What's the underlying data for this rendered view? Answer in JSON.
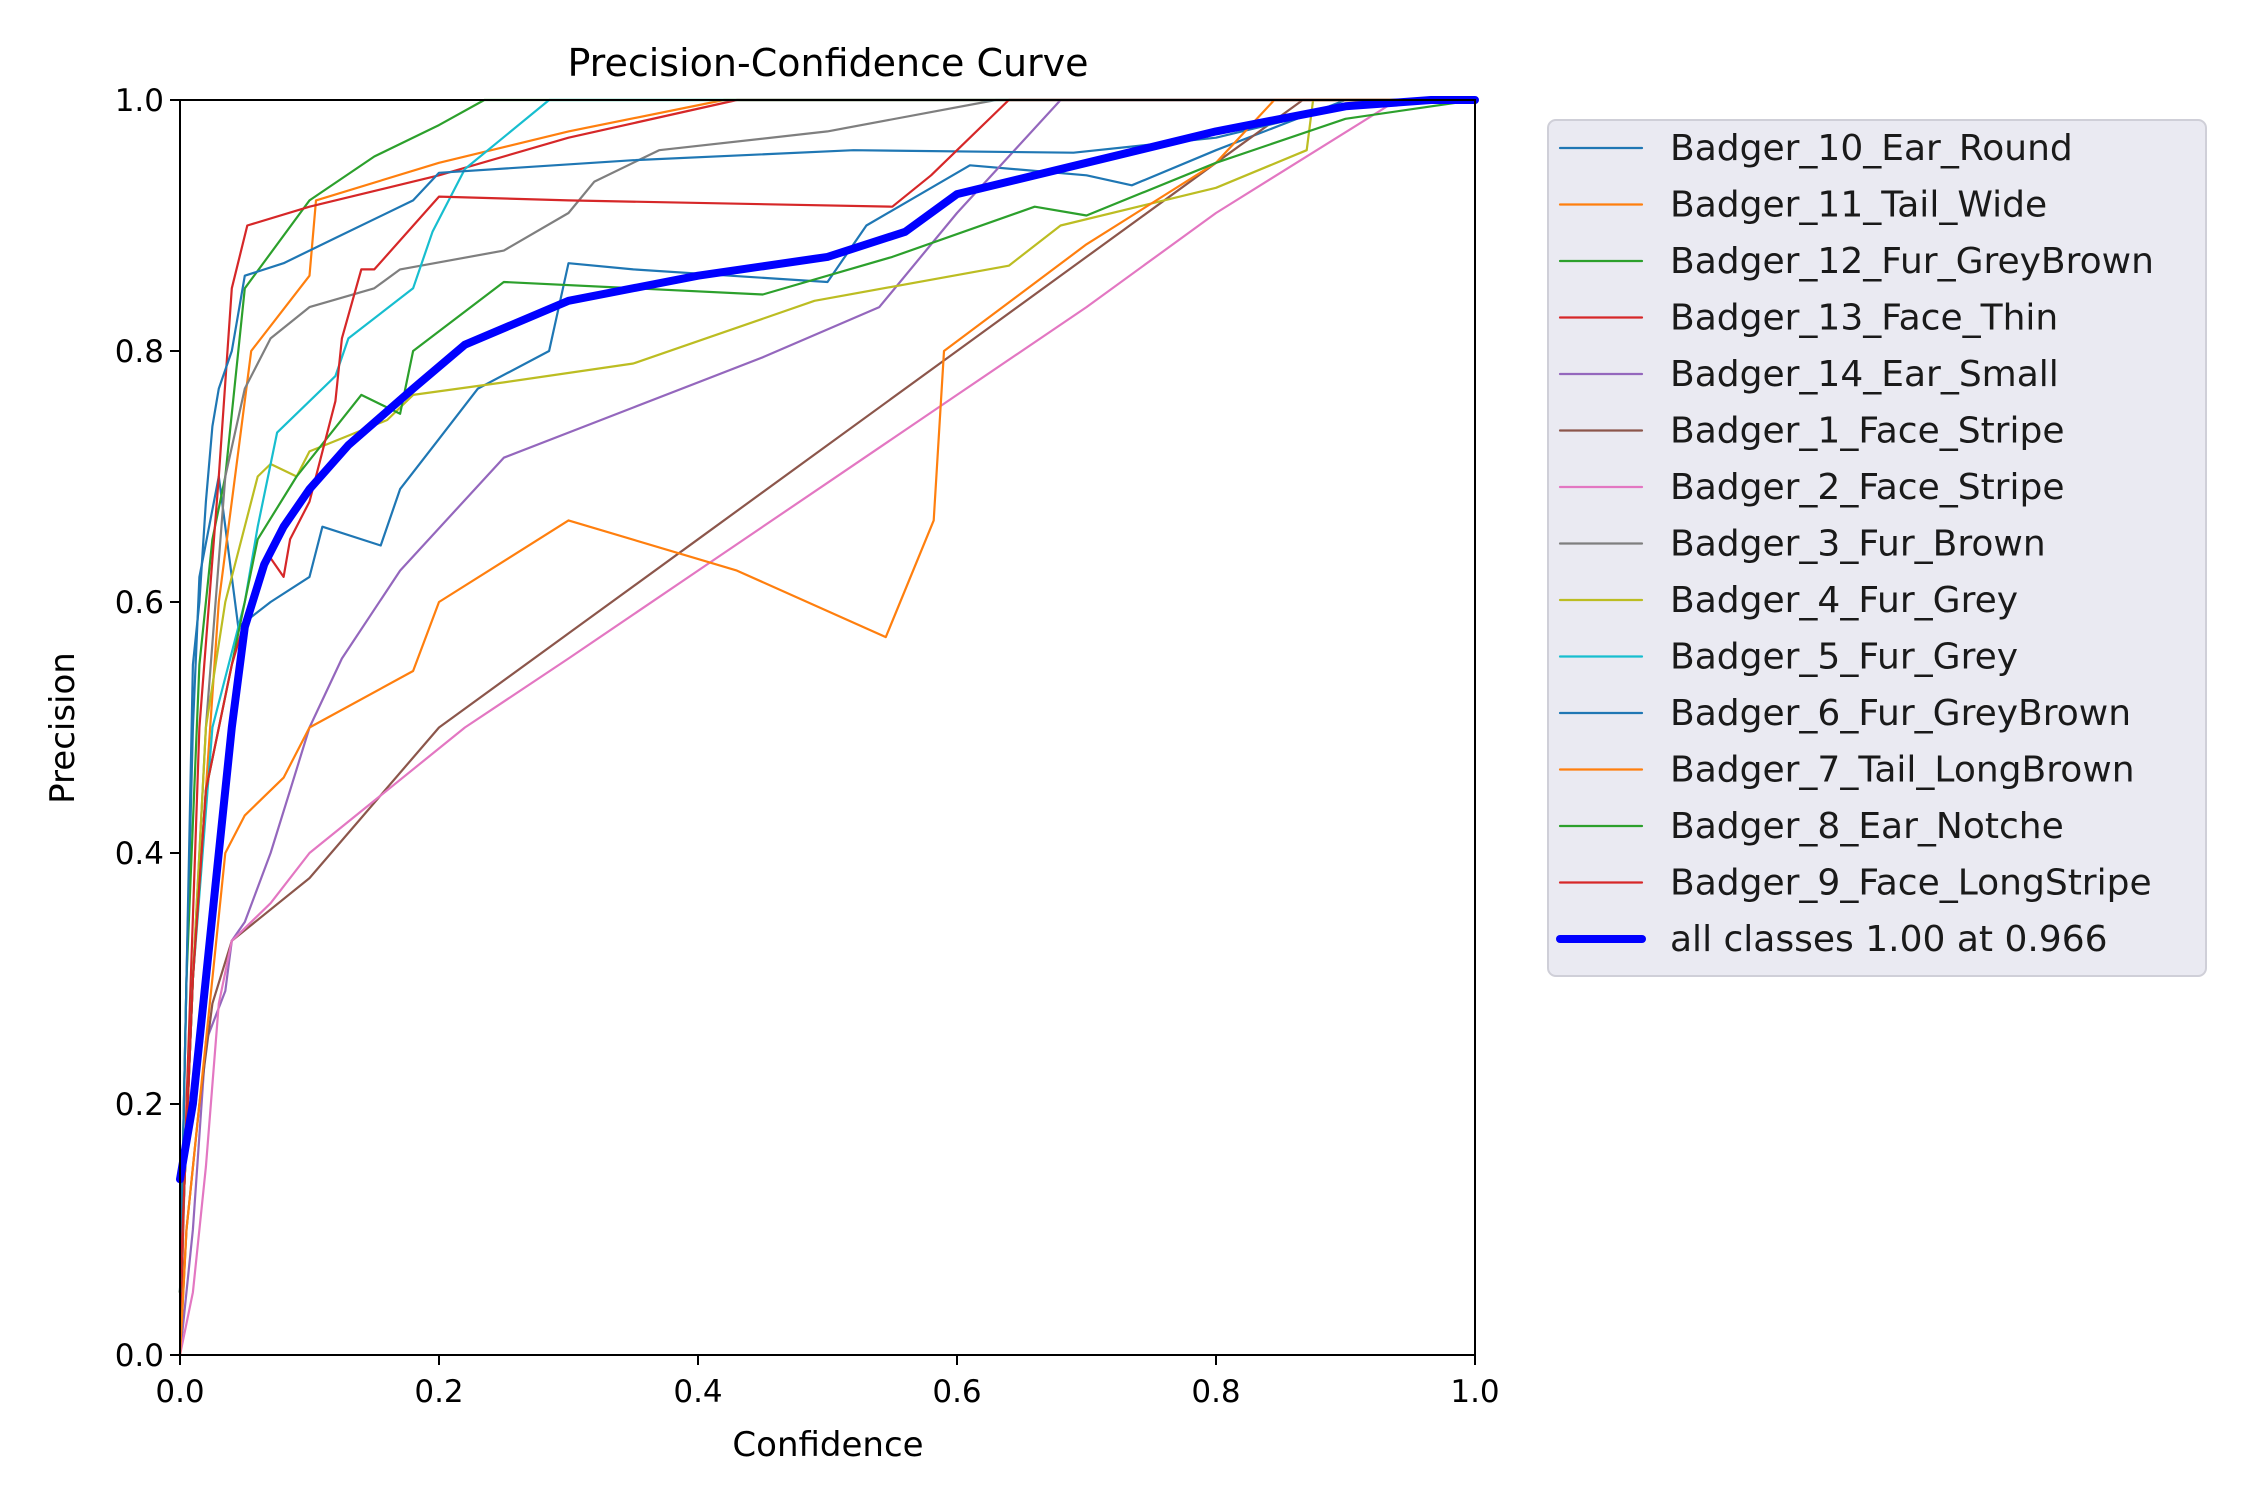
{
  "chart_data": {
    "type": "line",
    "title": "Precision-Confidence Curve",
    "xlabel": "Confidence",
    "ylabel": "Precision",
    "xlim": [
      0,
      1
    ],
    "ylim": [
      0,
      1
    ],
    "xticks": [
      "0.0",
      "0.2",
      "0.4",
      "0.6",
      "0.8",
      "1.0"
    ],
    "yticks": [
      "0.0",
      "0.2",
      "0.4",
      "0.6",
      "0.8",
      "1.0"
    ],
    "grid": false,
    "legend_position": "outside-right",
    "series": [
      {
        "name": "Badger_10_Ear_Round",
        "color": "#1f77b4",
        "points": [
          [
            0,
            0.05
          ],
          [
            0.005,
            0.3
          ],
          [
            0.01,
            0.5
          ],
          [
            0.015,
            0.62
          ],
          [
            0.03,
            0.7
          ],
          [
            0.045,
            0.58
          ],
          [
            0.07,
            0.6
          ],
          [
            0.1,
            0.62
          ],
          [
            0.11,
            0.66
          ],
          [
            0.155,
            0.645
          ],
          [
            0.17,
            0.69
          ],
          [
            0.2,
            0.73
          ],
          [
            0.23,
            0.77
          ],
          [
            0.285,
            0.8
          ],
          [
            0.3,
            0.87
          ],
          [
            0.35,
            0.865
          ],
          [
            0.5,
            0.855
          ],
          [
            0.53,
            0.9
          ],
          [
            0.61,
            0.948
          ],
          [
            0.7,
            0.94
          ],
          [
            0.735,
            0.932
          ],
          [
            0.8,
            0.96
          ],
          [
            0.9,
            1.0
          ],
          [
            1.0,
            1.0
          ]
        ]
      },
      {
        "name": "Badger_11_Tail_Wide",
        "color": "#ff7f0e",
        "points": [
          [
            0,
            0.05
          ],
          [
            0.01,
            0.3
          ],
          [
            0.03,
            0.6
          ],
          [
            0.045,
            0.72
          ],
          [
            0.055,
            0.8
          ],
          [
            0.1,
            0.86
          ],
          [
            0.105,
            0.92
          ],
          [
            0.2,
            0.95
          ],
          [
            0.3,
            0.975
          ],
          [
            0.42,
            1.0
          ],
          [
            1.0,
            1.0
          ]
        ]
      },
      {
        "name": "Badger_12_Fur_GreyBrown",
        "color": "#2ca02c",
        "points": [
          [
            0,
            0.05
          ],
          [
            0.005,
            0.3
          ],
          [
            0.015,
            0.55
          ],
          [
            0.025,
            0.65
          ],
          [
            0.035,
            0.7
          ],
          [
            0.045,
            0.8
          ],
          [
            0.05,
            0.85
          ],
          [
            0.1,
            0.92
          ],
          [
            0.15,
            0.955
          ],
          [
            0.2,
            0.98
          ],
          [
            0.235,
            1.0
          ],
          [
            1.0,
            1.0
          ]
        ]
      },
      {
        "name": "Badger_13_Face_Thin",
        "color": "#d62728",
        "points": [
          [
            0,
            0.0
          ],
          [
            0.005,
            0.2
          ],
          [
            0.015,
            0.5
          ],
          [
            0.03,
            0.7
          ],
          [
            0.04,
            0.85
          ],
          [
            0.052,
            0.9
          ],
          [
            0.1,
            0.915
          ],
          [
            0.2,
            0.94
          ],
          [
            0.3,
            0.97
          ],
          [
            0.43,
            1.0
          ],
          [
            1.0,
            1.0
          ]
        ]
      },
      {
        "name": "Badger_14_Ear_Small",
        "color": "#9467bd",
        "points": [
          [
            0,
            0.0
          ],
          [
            0.01,
            0.1
          ],
          [
            0.02,
            0.25
          ],
          [
            0.035,
            0.29
          ],
          [
            0.04,
            0.33
          ],
          [
            0.05,
            0.345
          ],
          [
            0.07,
            0.4
          ],
          [
            0.085,
            0.45
          ],
          [
            0.1,
            0.5
          ],
          [
            0.125,
            0.555
          ],
          [
            0.17,
            0.625
          ],
          [
            0.25,
            0.715
          ],
          [
            0.35,
            0.755
          ],
          [
            0.45,
            0.795
          ],
          [
            0.54,
            0.835
          ],
          [
            0.6,
            0.91
          ],
          [
            0.68,
            1.0
          ],
          [
            1.0,
            1.0
          ]
        ]
      },
      {
        "name": "Badger_1_Face_Stripe",
        "color": "#8c564b",
        "points": [
          [
            0,
            0.0
          ],
          [
            0.005,
            0.1
          ],
          [
            0.015,
            0.2
          ],
          [
            0.025,
            0.28
          ],
          [
            0.04,
            0.33
          ],
          [
            0.1,
            0.38
          ],
          [
            0.2,
            0.5
          ],
          [
            0.3,
            0.575
          ],
          [
            0.4,
            0.65
          ],
          [
            0.5,
            0.725
          ],
          [
            0.6,
            0.8
          ],
          [
            0.7,
            0.875
          ],
          [
            0.8,
            0.95
          ],
          [
            0.867,
            1.0
          ],
          [
            1.0,
            1.0
          ]
        ]
      },
      {
        "name": "Badger_2_Face_Stripe",
        "color": "#e377c2",
        "points": [
          [
            0,
            0.0
          ],
          [
            0.01,
            0.05
          ],
          [
            0.02,
            0.15
          ],
          [
            0.03,
            0.28
          ],
          [
            0.04,
            0.33
          ],
          [
            0.07,
            0.36
          ],
          [
            0.1,
            0.4
          ],
          [
            0.22,
            0.5
          ],
          [
            0.3,
            0.555
          ],
          [
            0.4,
            0.625
          ],
          [
            0.5,
            0.695
          ],
          [
            0.6,
            0.765
          ],
          [
            0.7,
            0.835
          ],
          [
            0.8,
            0.91
          ],
          [
            0.94,
            1.0
          ],
          [
            1.0,
            1.0
          ]
        ]
      },
      {
        "name": "Badger_3_Fur_Brown",
        "color": "#7f7f7f",
        "points": [
          [
            0,
            0.05
          ],
          [
            0.01,
            0.3
          ],
          [
            0.02,
            0.5
          ],
          [
            0.035,
            0.7
          ],
          [
            0.05,
            0.77
          ],
          [
            0.06,
            0.79
          ],
          [
            0.07,
            0.81
          ],
          [
            0.1,
            0.835
          ],
          [
            0.15,
            0.85
          ],
          [
            0.17,
            0.865
          ],
          [
            0.25,
            0.88
          ],
          [
            0.3,
            0.91
          ],
          [
            0.32,
            0.935
          ],
          [
            0.37,
            0.96
          ],
          [
            0.5,
            0.975
          ],
          [
            0.63,
            1.0
          ],
          [
            1.0,
            1.0
          ]
        ]
      },
      {
        "name": "Badger_4_Fur_Grey",
        "color": "#bcbd22",
        "points": [
          [
            0,
            0.05
          ],
          [
            0.01,
            0.3
          ],
          [
            0.02,
            0.5
          ],
          [
            0.035,
            0.6
          ],
          [
            0.06,
            0.7
          ],
          [
            0.07,
            0.71
          ],
          [
            0.09,
            0.7
          ],
          [
            0.1,
            0.72
          ],
          [
            0.16,
            0.745
          ],
          [
            0.18,
            0.765
          ],
          [
            0.25,
            0.775
          ],
          [
            0.35,
            0.79
          ],
          [
            0.42,
            0.815
          ],
          [
            0.49,
            0.84
          ],
          [
            0.64,
            0.868
          ],
          [
            0.68,
            0.9
          ],
          [
            0.8,
            0.93
          ],
          [
            0.87,
            0.96
          ],
          [
            0.875,
            1.0
          ],
          [
            1.0,
            1.0
          ]
        ]
      },
      {
        "name": "Badger_5_Fur_Grey",
        "color": "#17becf",
        "points": [
          [
            0,
            0.05
          ],
          [
            0.01,
            0.3
          ],
          [
            0.025,
            0.5
          ],
          [
            0.05,
            0.6
          ],
          [
            0.06,
            0.66
          ],
          [
            0.075,
            0.735
          ],
          [
            0.12,
            0.78
          ],
          [
            0.13,
            0.81
          ],
          [
            0.18,
            0.85
          ],
          [
            0.195,
            0.895
          ],
          [
            0.22,
            0.945
          ],
          [
            0.285,
            1.0
          ],
          [
            1.0,
            1.0
          ]
        ]
      },
      {
        "name": "Badger_6_Fur_GreyBrown",
        "color": "#1f77b4",
        "points": [
          [
            0,
            0.05
          ],
          [
            0.005,
            0.3
          ],
          [
            0.01,
            0.55
          ],
          [
            0.015,
            0.6
          ],
          [
            0.02,
            0.68
          ],
          [
            0.025,
            0.74
          ],
          [
            0.03,
            0.77
          ],
          [
            0.04,
            0.8
          ],
          [
            0.05,
            0.86
          ],
          [
            0.08,
            0.87
          ],
          [
            0.12,
            0.89
          ],
          [
            0.18,
            0.92
          ],
          [
            0.2,
            0.942
          ],
          [
            0.35,
            0.952
          ],
          [
            0.52,
            0.96
          ],
          [
            0.69,
            0.958
          ],
          [
            0.8,
            0.97
          ],
          [
            0.9,
            0.995
          ],
          [
            1.0,
            1.0
          ]
        ]
      },
      {
        "name": "Badger_7_Tail_LongBrown",
        "color": "#ff7f0e",
        "points": [
          [
            0,
            0.0
          ],
          [
            0.005,
            0.1
          ],
          [
            0.015,
            0.2
          ],
          [
            0.025,
            0.3
          ],
          [
            0.035,
            0.4
          ],
          [
            0.05,
            0.43
          ],
          [
            0.08,
            0.46
          ],
          [
            0.1,
            0.5
          ],
          [
            0.18,
            0.545
          ],
          [
            0.2,
            0.6
          ],
          [
            0.3,
            0.665
          ],
          [
            0.43,
            0.625
          ],
          [
            0.545,
            0.572
          ],
          [
            0.582,
            0.665
          ],
          [
            0.59,
            0.8
          ],
          [
            0.7,
            0.885
          ],
          [
            0.8,
            0.95
          ],
          [
            0.845,
            1.0
          ],
          [
            1.0,
            1.0
          ]
        ]
      },
      {
        "name": "Badger_8_Ear_Notche",
        "color": "#2ca02c",
        "points": [
          [
            0,
            0.05
          ],
          [
            0.01,
            0.3
          ],
          [
            0.02,
            0.45
          ],
          [
            0.04,
            0.55
          ],
          [
            0.06,
            0.65
          ],
          [
            0.09,
            0.7
          ],
          [
            0.14,
            0.765
          ],
          [
            0.17,
            0.75
          ],
          [
            0.18,
            0.8
          ],
          [
            0.25,
            0.855
          ],
          [
            0.45,
            0.845
          ],
          [
            0.55,
            0.875
          ],
          [
            0.66,
            0.915
          ],
          [
            0.7,
            0.908
          ],
          [
            0.8,
            0.95
          ],
          [
            0.9,
            0.985
          ],
          [
            1.0,
            1.0
          ]
        ]
      },
      {
        "name": "Badger_9_Face_LongStripe",
        "color": "#d62728",
        "points": [
          [
            0,
            0.05
          ],
          [
            0.01,
            0.3
          ],
          [
            0.02,
            0.45
          ],
          [
            0.04,
            0.55
          ],
          [
            0.06,
            0.62
          ],
          [
            0.07,
            0.635
          ],
          [
            0.08,
            0.62
          ],
          [
            0.085,
            0.65
          ],
          [
            0.1,
            0.68
          ],
          [
            0.12,
            0.76
          ],
          [
            0.125,
            0.81
          ],
          [
            0.14,
            0.865
          ],
          [
            0.15,
            0.865
          ],
          [
            0.2,
            0.923
          ],
          [
            0.3,
            0.92
          ],
          [
            0.55,
            0.915
          ],
          [
            0.58,
            0.94
          ],
          [
            0.64,
            1.0
          ],
          [
            1.0,
            1.0
          ]
        ]
      },
      {
        "name": "all classes 1.00 at 0.966",
        "color": "#0000ff",
        "thick": true,
        "points": [
          [
            0,
            0.14
          ],
          [
            0.01,
            0.2
          ],
          [
            0.02,
            0.3
          ],
          [
            0.03,
            0.4
          ],
          [
            0.04,
            0.5
          ],
          [
            0.05,
            0.58
          ],
          [
            0.065,
            0.63
          ],
          [
            0.08,
            0.66
          ],
          [
            0.1,
            0.69
          ],
          [
            0.13,
            0.725
          ],
          [
            0.18,
            0.77
          ],
          [
            0.22,
            0.805
          ],
          [
            0.3,
            0.84
          ],
          [
            0.4,
            0.86
          ],
          [
            0.5,
            0.875
          ],
          [
            0.56,
            0.895
          ],
          [
            0.6,
            0.925
          ],
          [
            0.7,
            0.95
          ],
          [
            0.8,
            0.975
          ],
          [
            0.9,
            0.995
          ],
          [
            0.966,
            1.0
          ],
          [
            1.0,
            1.0
          ]
        ]
      }
    ]
  }
}
